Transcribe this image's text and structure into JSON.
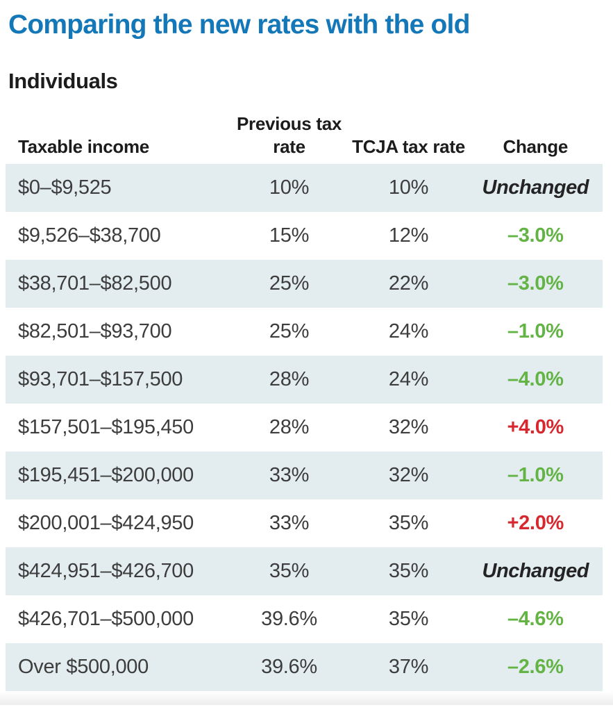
{
  "header": {
    "title": "Comparing the new rates with the old",
    "subtitle": "Individuals"
  },
  "table": {
    "columns": [
      "Taxable income",
      "Previous tax rate",
      "TCJA tax rate",
      "Change"
    ],
    "rows": [
      {
        "income": "$0–$9,525",
        "previous": "10%",
        "tcja": "10%",
        "change": "Unchanged",
        "change_type": "unchanged"
      },
      {
        "income": "$9,526–$38,700",
        "previous": "15%",
        "tcja": "12%",
        "change": "–3.0%",
        "change_type": "negative"
      },
      {
        "income": "$38,701–$82,500",
        "previous": "25%",
        "tcja": "22%",
        "change": "–3.0%",
        "change_type": "negative"
      },
      {
        "income": "$82,501–$93,700",
        "previous": "25%",
        "tcja": "24%",
        "change": "–1.0%",
        "change_type": "negative"
      },
      {
        "income": "$93,701–$157,500",
        "previous": "28%",
        "tcja": "24%",
        "change": "–4.0%",
        "change_type": "negative"
      },
      {
        "income": "$157,501–$195,450",
        "previous": "28%",
        "tcja": "32%",
        "change": "+4.0%",
        "change_type": "positive"
      },
      {
        "income": "$195,451–$200,000",
        "previous": "33%",
        "tcja": "32%",
        "change": "–1.0%",
        "change_type": "negative"
      },
      {
        "income": "$200,001–$424,950",
        "previous": "33%",
        "tcja": "35%",
        "change": "+2.0%",
        "change_type": "positive"
      },
      {
        "income": "$424,951–$426,700",
        "previous": "35%",
        "tcja": "35%",
        "change": "Unchanged",
        "change_type": "unchanged"
      },
      {
        "income": "$426,701–$500,000",
        "previous": "39.6%",
        "tcja": "35%",
        "change": "–4.6%",
        "change_type": "negative"
      },
      {
        "income": "Over $500,000",
        "previous": "39.6%",
        "tcja": "37%",
        "change": "–2.6%",
        "change_type": "negative"
      }
    ]
  },
  "colors": {
    "title_blue": "#1478b8",
    "row_stripe": "#e3edf0",
    "decrease_green": "#63b345",
    "increase_red": "#d7282f"
  },
  "chart_data": {
    "type": "table",
    "title": "Comparing the new rates with the old",
    "subtitle": "Individuals",
    "columns": [
      "Taxable income",
      "Previous tax rate",
      "TCJA tax rate",
      "Change"
    ],
    "rows": [
      [
        "$0–$9,525",
        "10%",
        "10%",
        "Unchanged"
      ],
      [
        "$9,526–$38,700",
        "15%",
        "12%",
        "–3.0%"
      ],
      [
        "$38,701–$82,500",
        "25%",
        "22%",
        "–3.0%"
      ],
      [
        "$82,501–$93,700",
        "25%",
        "24%",
        "–1.0%"
      ],
      [
        "$93,701–$157,500",
        "28%",
        "24%",
        "–4.0%"
      ],
      [
        "$157,501–$195,450",
        "28%",
        "32%",
        "+4.0%"
      ],
      [
        "$195,451–$200,000",
        "33%",
        "32%",
        "–1.0%"
      ],
      [
        "$200,001–$424,950",
        "33%",
        "35%",
        "+2.0%"
      ],
      [
        "$424,951–$426,700",
        "35%",
        "35%",
        "Unchanged"
      ],
      [
        "$426,701–$500,000",
        "39.6%",
        "35%",
        "–4.6%"
      ],
      [
        "Over $500,000",
        "39.6%",
        "37%",
        "–2.6%"
      ]
    ],
    "layout": {
      "zebra_striping": true,
      "stripe_rows": "odd (1st, 3rd, ...)",
      "value_alignment": "income left, rates and change centered"
    },
    "semantics": {
      "green_values": "rate decreased",
      "red_values": "rate increased",
      "italic_values": "unchanged"
    }
  }
}
